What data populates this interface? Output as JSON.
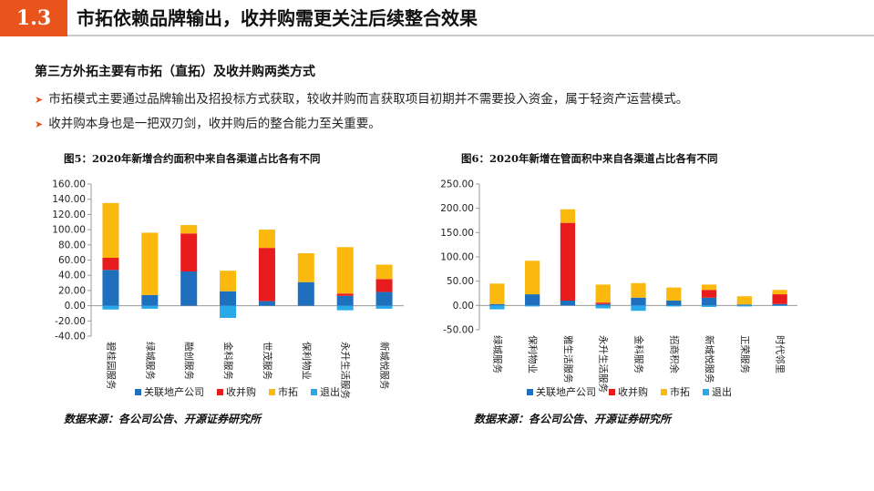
{
  "header": {
    "section_number": "1.3",
    "title": "市拓依赖品牌输出，收并购需更关注后续整合效果"
  },
  "content": {
    "subheading": "第三方外拓主要有市拓（直拓）及收并购两类方式",
    "bullets": [
      "市拓模式主要通过品牌输出及招投标方式获取，较收并购而言获取项目初期并不需要投入资金，属于轻资产运营模式。",
      "收并购本身也是一把双刃剑，收并购后的整合能力至关重要。"
    ]
  },
  "colors": {
    "关联地产公司": "#1f6fbf",
    "收并购": "#e81c1c",
    "市拓": "#fbb80f",
    "退出": "#2aa9e8"
  },
  "chart_data": [
    {
      "type": "bar",
      "stacked": true,
      "title": "图5：2020年新增合约面积中来自各渠道占比各有不同",
      "source": "数据来源：各公司公告、开源证券研究所",
      "categories": [
        "碧桂园服务",
        "绿城服务",
        "融创服务",
        "金科服务",
        "世茂服务",
        "保利物业",
        "永升生活服务",
        "新城悦服务"
      ],
      "ylim": [
        -40,
        160
      ],
      "yticks": [
        "160.00",
        "140.00",
        "120.00",
        "100.00",
        "80.00",
        "60.00",
        "40.00",
        "20.00",
        "0.00",
        "-20.00",
        "-40.00"
      ],
      "series": [
        {
          "name": "关联地产公司",
          "values": [
            47,
            14,
            45,
            19,
            6,
            31,
            13,
            18
          ]
        },
        {
          "name": "收并购",
          "values": [
            16,
            0,
            50,
            0,
            70,
            0,
            3,
            17
          ]
        },
        {
          "name": "市拓",
          "values": [
            72,
            82,
            11,
            27,
            24,
            38,
            61,
            19
          ]
        },
        {
          "name": "退出",
          "values": [
            -5,
            -4,
            0,
            -16,
            0,
            0,
            -6,
            -4
          ]
        }
      ],
      "legend": "bottom"
    },
    {
      "type": "bar",
      "stacked": true,
      "title": "图6：2020年新增在管面积中来自各渠道占比各有不同",
      "source": "数据来源：各公司公告、开源证券研究所",
      "categories": [
        "绿城服务",
        "保利物业",
        "雅生活服务",
        "永升生活服务",
        "金科服务",
        "招商积余",
        "新城悦服务",
        "正荣服务",
        "时代邻里"
      ],
      "ylim": [
        -50,
        250
      ],
      "yticks": [
        "250.00",
        "200.00",
        "150.00",
        "100.00",
        "50.00",
        "0.00",
        "-50.00"
      ],
      "series": [
        {
          "name": "关联地产公司",
          "values": [
            3,
            23,
            10,
            3,
            16,
            10,
            16,
            2,
            3
          ]
        },
        {
          "name": "收并购",
          "values": [
            0,
            0,
            160,
            3,
            0,
            0,
            16,
            0,
            20
          ]
        },
        {
          "name": "市拓",
          "values": [
            42,
            69,
            28,
            37,
            30,
            27,
            11,
            17,
            9
          ]
        },
        {
          "name": "退出",
          "values": [
            -8,
            -2,
            0,
            -6,
            -11,
            -2,
            -3,
            -2,
            -1
          ]
        }
      ],
      "legend": "bottom"
    }
  ]
}
